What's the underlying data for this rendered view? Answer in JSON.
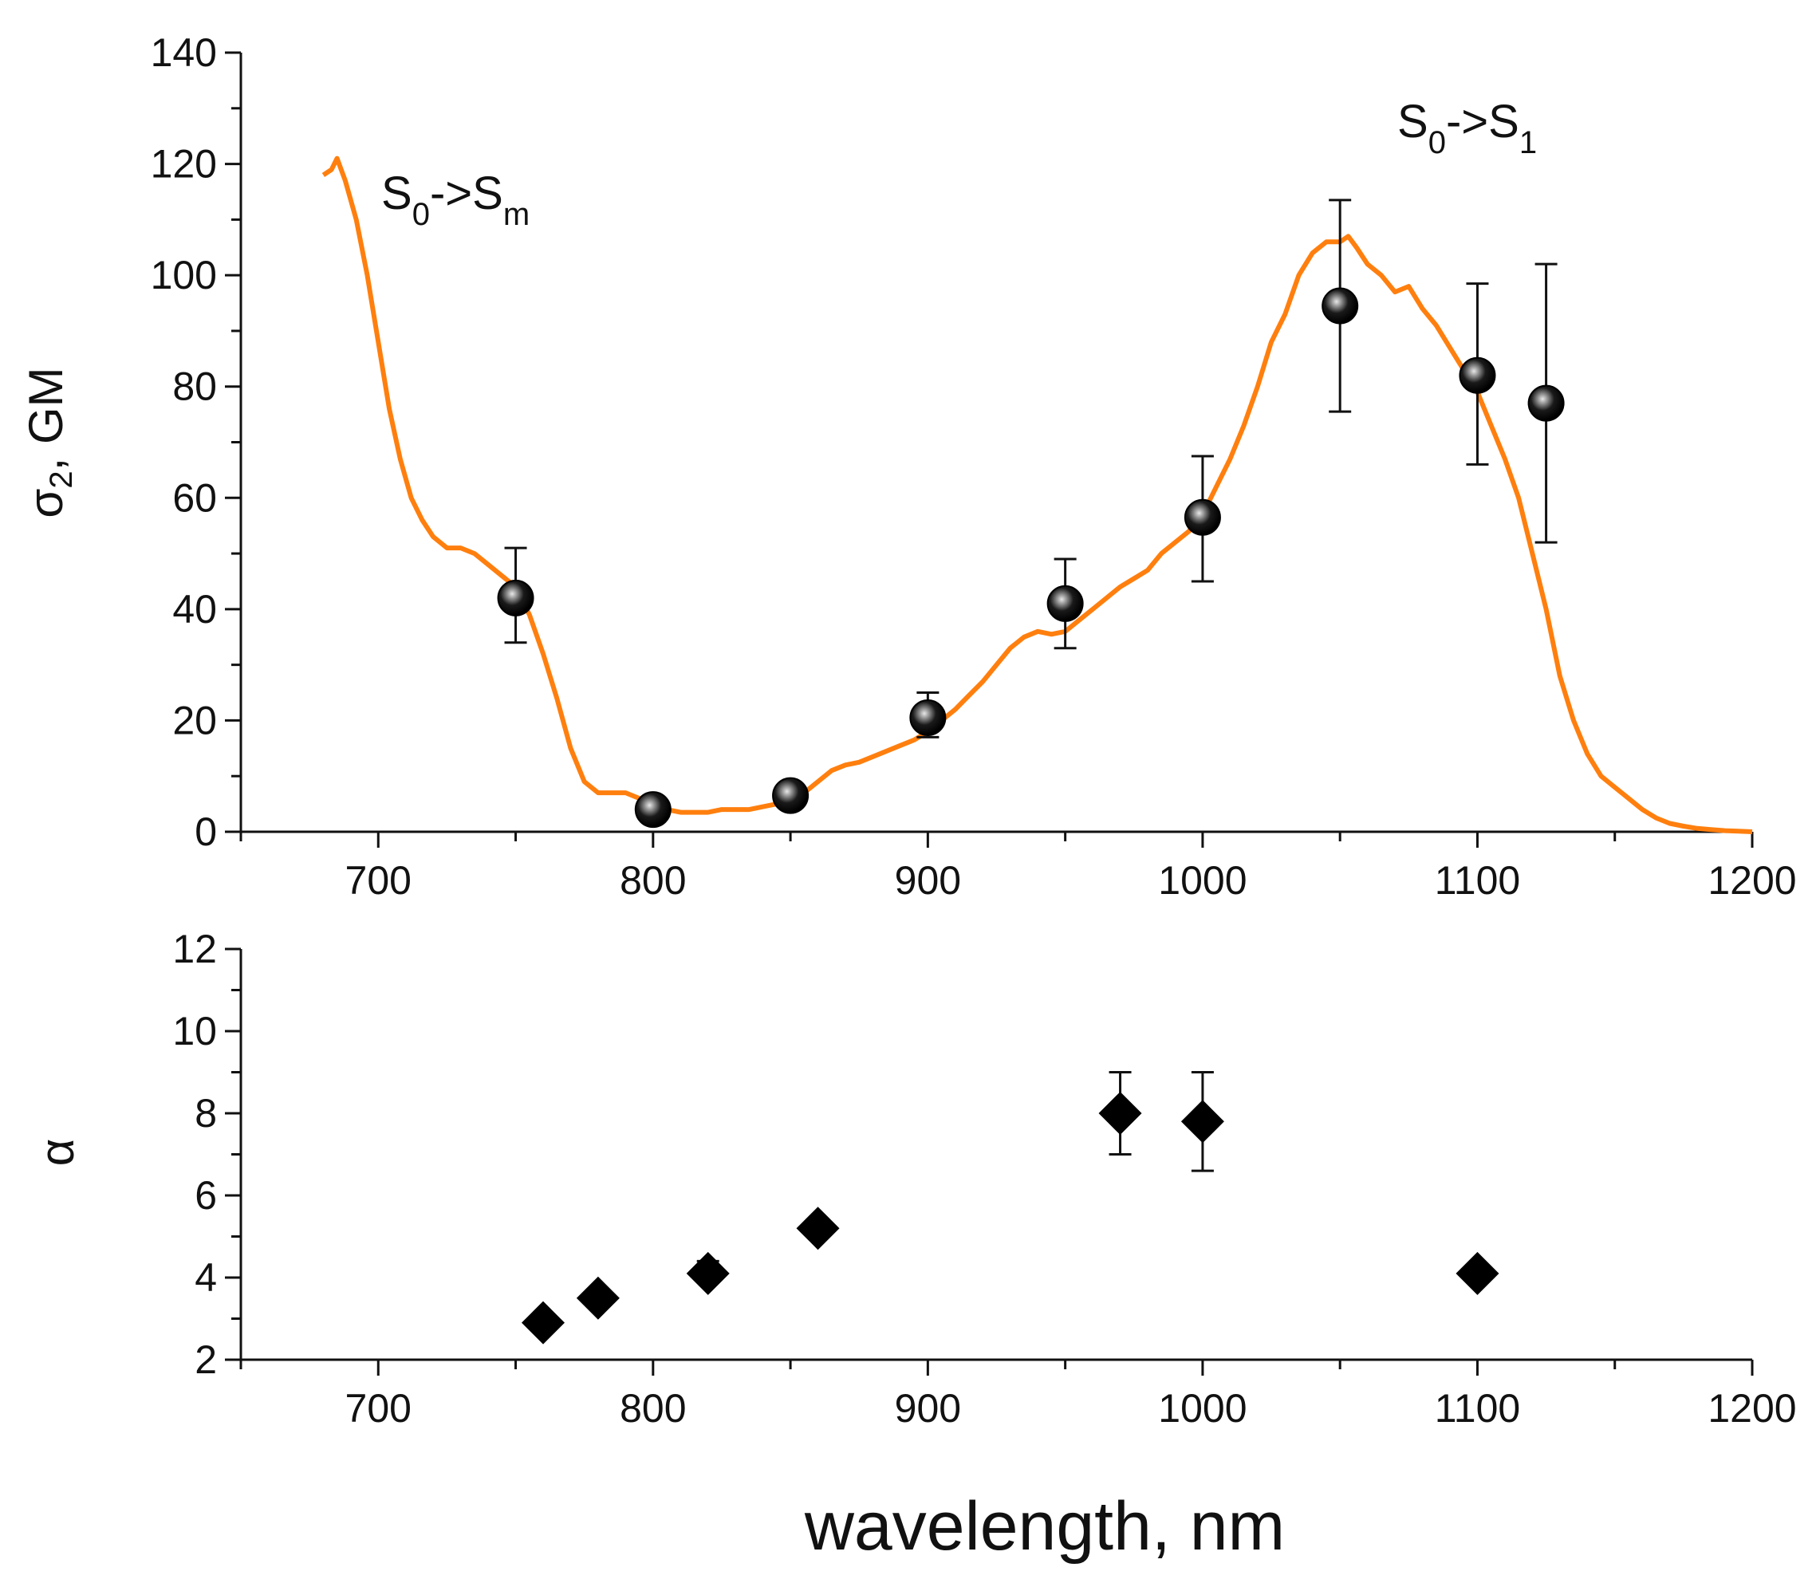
{
  "figure": {
    "xlabel": "wavelength, nm",
    "colors": {
      "curve": "#ff7f0e",
      "marker": "#000000",
      "axis": "#111111"
    }
  },
  "chart_data": [
    {
      "type": "line",
      "panel": "top",
      "ylabel_symbol": "σ",
      "ylabel_sub": "2",
      "ylabel_rest": ", GM",
      "xlim": [
        650,
        1200
      ],
      "ylim": [
        0,
        140
      ],
      "xticks": [
        700,
        800,
        900,
        1000,
        1100,
        1200
      ],
      "yticks": [
        0,
        20,
        40,
        60,
        80,
        100,
        120,
        140
      ],
      "grid": false,
      "annotations": [
        {
          "main": "S",
          "sub1": "0",
          "mid": "->S",
          "sub2": "m",
          "x": 722,
          "y": 112
        },
        {
          "main": "S",
          "sub1": "0",
          "mid": "->S",
          "sub2": "1",
          "x": 1058,
          "y": 122
        }
      ],
      "series": [
        {
          "name": "spectrum",
          "kind": "line",
          "color": "#ff7f0e",
          "x": [
            680,
            683,
            685,
            688,
            692,
            696,
            700,
            704,
            708,
            712,
            716,
            720,
            725,
            730,
            735,
            740,
            745,
            750,
            755,
            760,
            765,
            770,
            775,
            780,
            785,
            790,
            795,
            800,
            805,
            810,
            815,
            820,
            825,
            830,
            835,
            840,
            845,
            850,
            855,
            860,
            865,
            870,
            875,
            880,
            885,
            890,
            895,
            900,
            905,
            910,
            915,
            920,
            925,
            930,
            935,
            940,
            945,
            950,
            955,
            960,
            965,
            970,
            975,
            980,
            985,
            990,
            995,
            1000,
            1005,
            1010,
            1015,
            1020,
            1025,
            1030,
            1035,
            1040,
            1045,
            1050,
            1053,
            1056,
            1060,
            1065,
            1070,
            1075,
            1080,
            1085,
            1090,
            1095,
            1100,
            1105,
            1110,
            1115,
            1120,
            1125,
            1130,
            1135,
            1140,
            1145,
            1150,
            1155,
            1160,
            1165,
            1170,
            1175,
            1180,
            1185,
            1190,
            1195,
            1200
          ],
          "values": [
            118,
            119,
            121,
            117,
            110,
            100,
            88,
            76,
            67,
            60,
            56,
            53,
            51,
            51,
            50,
            48,
            46,
            44,
            39,
            32,
            24,
            15,
            9,
            7,
            7,
            7,
            6,
            5,
            4,
            3.5,
            3.5,
            3.5,
            4,
            4,
            4,
            4.5,
            5,
            6,
            7,
            9,
            11,
            12,
            12.5,
            13.5,
            14.5,
            15.5,
            16.5,
            18,
            20,
            22,
            24.5,
            27,
            30,
            33,
            35,
            36,
            35.5,
            36,
            38,
            40,
            42,
            44,
            45.5,
            47,
            50,
            52,
            54,
            57,
            62,
            67,
            73,
            80,
            88,
            93,
            100,
            104,
            106,
            106,
            107,
            105,
            102,
            100,
            97,
            98,
            94,
            91,
            87,
            83,
            79,
            73,
            67,
            60,
            50,
            40,
            28,
            20,
            14,
            10,
            8,
            6,
            4,
            2.5,
            1.5,
            1,
            0.6,
            0.4,
            0.2,
            0.1,
            0
          ]
        },
        {
          "name": "measured",
          "kind": "scatter",
          "marker": "sphere",
          "x": [
            750,
            800,
            850,
            900,
            950,
            1000,
            1050,
            1100,
            1125
          ],
          "values": [
            42,
            4,
            6.5,
            20.5,
            41,
            56.5,
            94.5,
            82,
            77
          ],
          "err_low": [
            34,
            3,
            5,
            17,
            33,
            45,
            75.5,
            66,
            52
          ],
          "err_high": [
            51,
            5,
            8,
            25,
            49,
            67.5,
            113.5,
            98.5,
            102
          ]
        }
      ]
    },
    {
      "type": "scatter",
      "panel": "bottom",
      "ylabel": "α",
      "xlim": [
        650,
        1200
      ],
      "ylim": [
        2,
        12
      ],
      "xticks": [
        700,
        800,
        900,
        1000,
        1100,
        1200
      ],
      "yticks": [
        2,
        4,
        6,
        8,
        10,
        12
      ],
      "grid": false,
      "series": [
        {
          "name": "alpha",
          "marker": "diamond",
          "x": [
            760,
            780,
            820,
            860,
            970,
            1000,
            1100
          ],
          "values": [
            2.9,
            3.5,
            4.1,
            5.2,
            8.0,
            7.8,
            4.1
          ],
          "err_low": [
            null,
            null,
            3.9,
            null,
            7.0,
            6.6,
            null
          ],
          "err_high": [
            null,
            null,
            4.4,
            null,
            9.0,
            9.0,
            null
          ]
        }
      ]
    }
  ]
}
